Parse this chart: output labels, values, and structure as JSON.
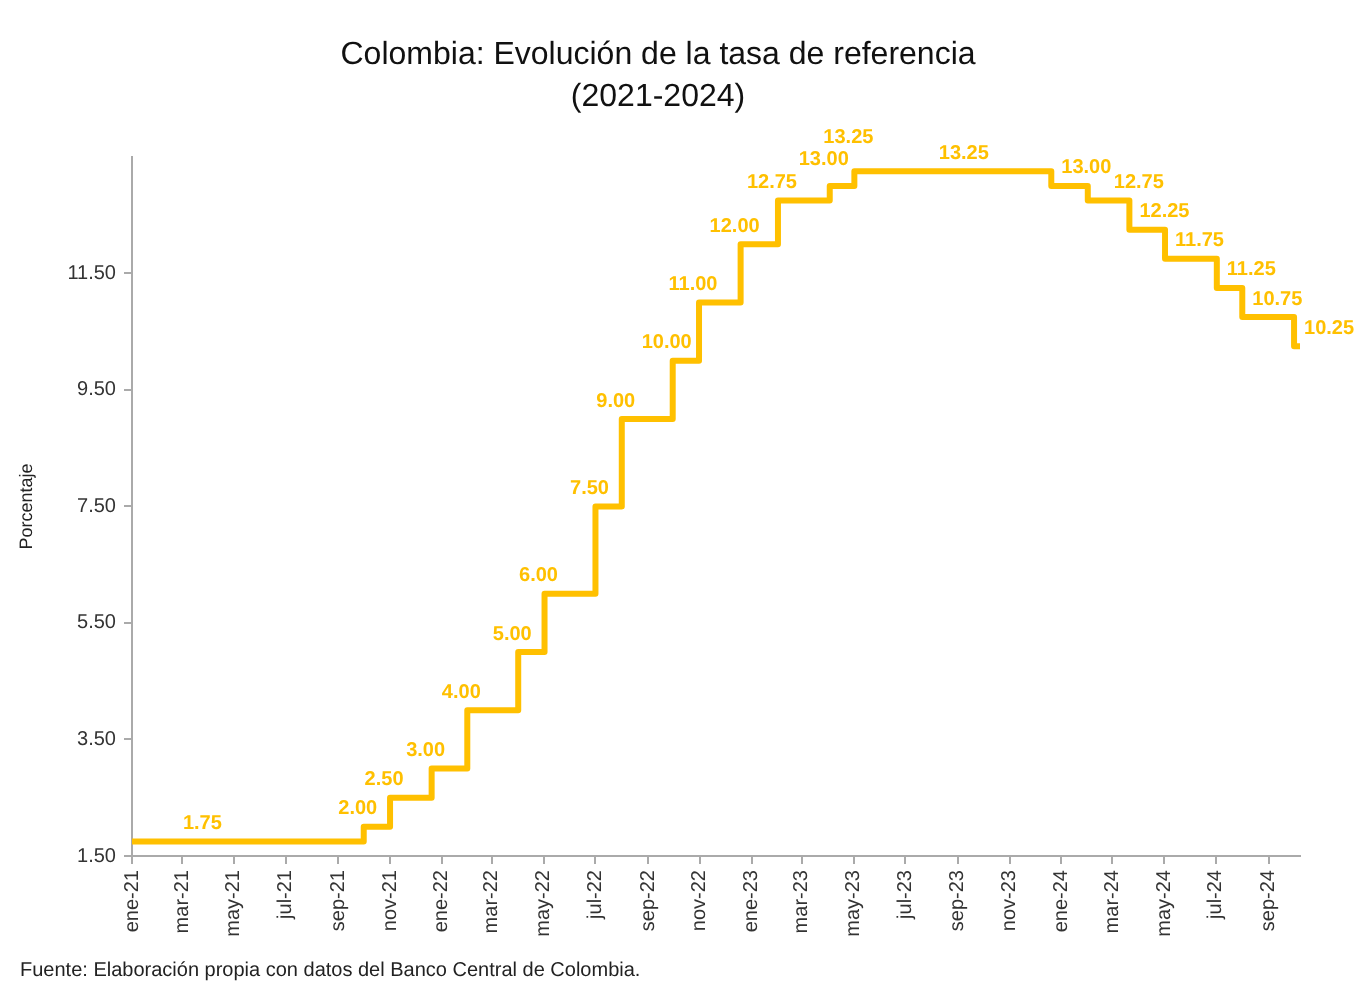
{
  "chart_data": {
    "type": "step",
    "title": "Colombia: Evolución de la tasa de referencia",
    "subtitle": "(2021-2024)",
    "ylabel": "Porcentaje",
    "annotations": [
      "Fuente: Elaboración propia con datos del Banco Central de Colombia."
    ],
    "x": [
      "2021-01-01",
      "2021-04-01",
      "2021-10-01",
      "2021-11-01",
      "2021-12-20",
      "2022-01-31",
      "2022-04-01",
      "2022-05-02",
      "2022-07-01",
      "2022-08-01",
      "2022-09-30",
      "2022-10-31",
      "2022-12-19",
      "2023-02-01",
      "2023-04-03",
      "2023-05-02",
      "2023-09-15",
      "2023-12-20",
      "2024-02-01",
      "2024-03-21",
      "2024-05-02",
      "2024-07-02",
      "2024-08-01",
      "2024-10-01",
      "2024-10-08"
    ],
    "values": [
      1.75,
      1.75,
      2.0,
      2.5,
      3.0,
      4.0,
      5.0,
      6.0,
      7.5,
      9.0,
      10.0,
      11.0,
      12.0,
      12.75,
      13.0,
      13.25,
      13.25,
      13.0,
      12.75,
      12.25,
      11.75,
      11.25,
      10.75,
      10.25,
      10.25
    ],
    "value_labels": [
      null,
      "1.75",
      "2.00",
      "2.50",
      "3.00",
      "4.00",
      "5.00",
      "6.00",
      "7.50",
      "9.00",
      "10.00",
      "11.00",
      "12.00",
      "12.75",
      "13.00",
      "13.25",
      "13.25",
      "13.00",
      "12.75",
      "12.25",
      "11.75",
      "11.25",
      "10.75",
      "10.25",
      null
    ],
    "color": "#ffc000",
    "xlim": [
      "2021-01-01",
      "2024-10-08"
    ],
    "xticks": [
      {
        "value": "2021-01-01",
        "label": "ene-21"
      },
      {
        "value": "2021-03-01",
        "label": "mar-21"
      },
      {
        "value": "2021-05-01",
        "label": "may-21"
      },
      {
        "value": "2021-07-01",
        "label": "jul-21"
      },
      {
        "value": "2021-09-01",
        "label": "sep-21"
      },
      {
        "value": "2021-11-01",
        "label": "nov-21"
      },
      {
        "value": "2022-01-01",
        "label": "ene-22"
      },
      {
        "value": "2022-03-01",
        "label": "mar-22"
      },
      {
        "value": "2022-05-01",
        "label": "may-22"
      },
      {
        "value": "2022-07-01",
        "label": "jul-22"
      },
      {
        "value": "2022-09-01",
        "label": "sep-22"
      },
      {
        "value": "2022-11-01",
        "label": "nov-22"
      },
      {
        "value": "2023-01-01",
        "label": "ene-23"
      },
      {
        "value": "2023-03-01",
        "label": "mar-23"
      },
      {
        "value": "2023-05-01",
        "label": "may-23"
      },
      {
        "value": "2023-07-01",
        "label": "jul-23"
      },
      {
        "value": "2023-09-01",
        "label": "sep-23"
      },
      {
        "value": "2023-11-01",
        "label": "nov-23"
      },
      {
        "value": "2024-01-01",
        "label": "ene-24"
      },
      {
        "value": "2024-03-01",
        "label": "mar-24"
      },
      {
        "value": "2024-05-01",
        "label": "may-24"
      },
      {
        "value": "2024-07-01",
        "label": "jul-24"
      },
      {
        "value": "2024-09-01",
        "label": "sep-24"
      }
    ],
    "ylim": [
      1.5,
      13.5
    ],
    "yticks": [
      {
        "value": 1.5,
        "label": "1.50"
      },
      {
        "value": 3.5,
        "label": "3.50"
      },
      {
        "value": 5.5,
        "label": "5.50"
      },
      {
        "value": 7.5,
        "label": "7.50"
      },
      {
        "value": 9.5,
        "label": "9.50"
      },
      {
        "value": 11.5,
        "label": "11.50"
      }
    ]
  }
}
